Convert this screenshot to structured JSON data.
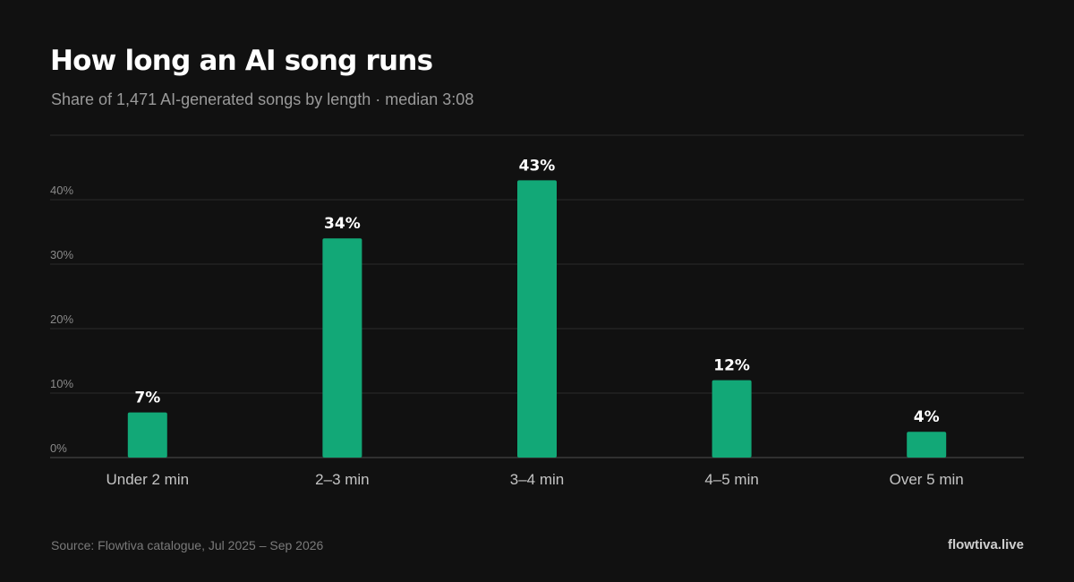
{
  "header": {
    "title": "How long an AI song runs",
    "subtitle": "Share of 1,471 AI-generated songs by length · median 3:08"
  },
  "footer": {
    "source": "Source: Flowtiva catalogue, Jul 2025 – Sep 2026",
    "brand": "flowtiva.live"
  },
  "colors": {
    "background": "#111111",
    "bar": "#12a877",
    "gridline": "#2a2a2a",
    "baseline": "#3a3a3a",
    "tick_label": "#8a8a8a",
    "category_label": "#c4c4c4",
    "value_label": "#ffffff"
  },
  "chart_data": {
    "type": "bar",
    "categories": [
      "Under 2 min",
      "2–3 min",
      "3–4 min",
      "4–5 min",
      "Over 5 min"
    ],
    "values": [
      7,
      34,
      43,
      12,
      4
    ],
    "value_labels": [
      "7%",
      "34%",
      "43%",
      "12%",
      "4%"
    ],
    "yticks": [
      0,
      10,
      20,
      30,
      40
    ],
    "ytick_labels": [
      "0%",
      "10%",
      "20%",
      "30%",
      "40%"
    ],
    "ylim": [
      0,
      50
    ],
    "grid": true,
    "legend": "none"
  }
}
